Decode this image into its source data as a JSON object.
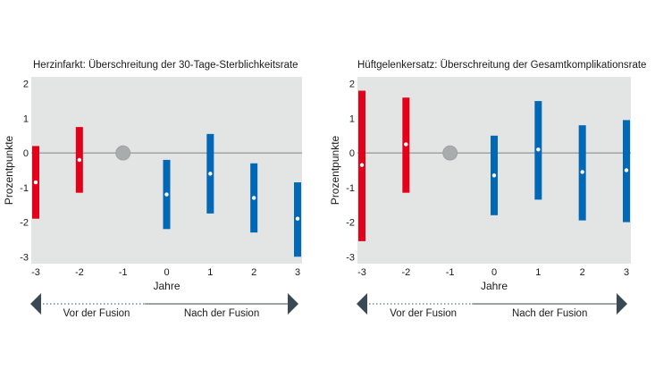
{
  "chart_data": [
    {
      "type": "interval",
      "title": "Herzinfarkt: Überschreitung der 30-Tage-Sterblichkeitsrate",
      "xlabel": "Jahre",
      "ylabel": "Prozentpunkte",
      "x": [
        -3,
        -2,
        -1,
        0,
        1,
        2,
        3
      ],
      "ylim": [
        -3.2,
        2.2
      ],
      "yticks": [
        2,
        1,
        0,
        -1,
        -2,
        -3
      ],
      "reference_year": -1,
      "grid": false,
      "intervals": [
        {
          "x": -3,
          "estimate": -0.85,
          "low": -1.9,
          "high": 0.2,
          "period": "before"
        },
        {
          "x": -2,
          "estimate": -0.2,
          "low": -1.15,
          "high": 0.75,
          "period": "before"
        },
        {
          "x": 0,
          "estimate": -1.2,
          "low": -2.2,
          "high": -0.2,
          "period": "after"
        },
        {
          "x": 1,
          "estimate": -0.6,
          "low": -1.75,
          "high": 0.55,
          "period": "after"
        },
        {
          "x": 2,
          "estimate": -1.3,
          "low": -2.3,
          "high": -0.3,
          "period": "after"
        },
        {
          "x": 3,
          "estimate": -1.9,
          "low": -3.0,
          "high": -0.85,
          "period": "after"
        }
      ]
    },
    {
      "type": "interval",
      "title": "Hüftgelenkersatz: Überschreitung der Gesamtkomplikationsrate",
      "xlabel": "Jahre",
      "ylabel": "Prozentpunkte",
      "x": [
        -3,
        -2,
        -1,
        0,
        1,
        2,
        3
      ],
      "ylim": [
        -3.2,
        2.2
      ],
      "yticks": [
        2,
        1,
        0,
        -1,
        -2,
        -3
      ],
      "reference_year": -1,
      "grid": false,
      "intervals": [
        {
          "x": -3,
          "estimate": -0.35,
          "low": -2.55,
          "high": 1.8,
          "period": "before"
        },
        {
          "x": -2,
          "estimate": 0.25,
          "low": -1.15,
          "high": 1.6,
          "period": "before"
        },
        {
          "x": 0,
          "estimate": -0.65,
          "low": -1.8,
          "high": 0.5,
          "period": "after"
        },
        {
          "x": 1,
          "estimate": 0.1,
          "low": -1.35,
          "high": 1.5,
          "period": "after"
        },
        {
          "x": 2,
          "estimate": -0.55,
          "low": -1.95,
          "high": 0.8,
          "period": "after"
        },
        {
          "x": 3,
          "estimate": -0.5,
          "low": -2.0,
          "high": 0.95,
          "period": "after"
        }
      ]
    }
  ],
  "periods": {
    "before_label": "Vor der Fusion",
    "after_label": "Nach der Fusion"
  },
  "colors": {
    "before": "#e2001a",
    "after": "#0068b4",
    "reference": "#a9acad",
    "panel_bg": "#e3e5e5",
    "zero_line": "#7d8285",
    "arrow": "#3a4a54"
  }
}
